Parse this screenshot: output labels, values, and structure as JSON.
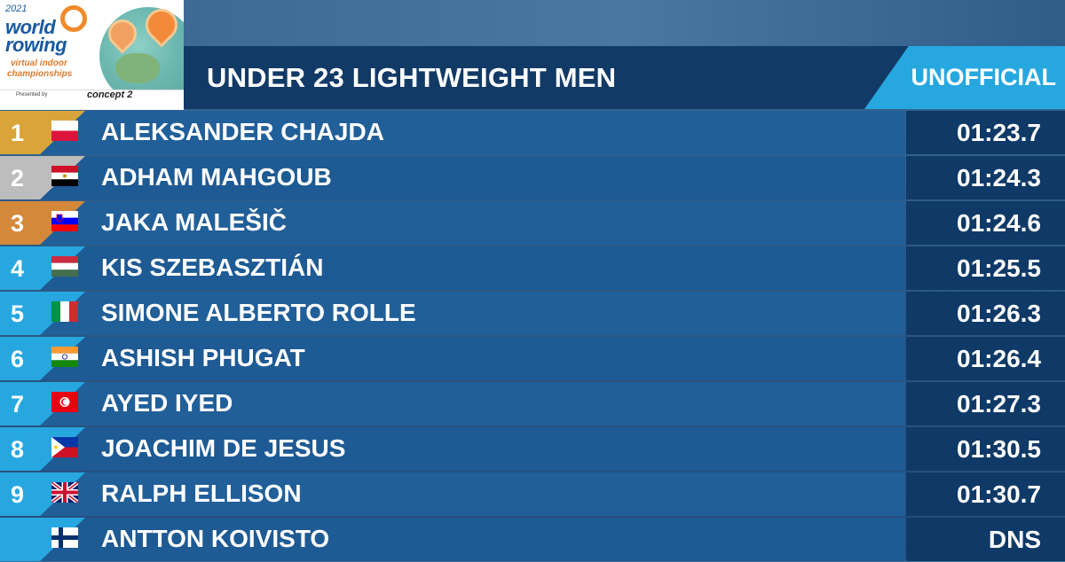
{
  "logo": {
    "year": "2021",
    "word1": "world",
    "word2": "rowing",
    "sub1": "virtual indoor",
    "sub2": "championships",
    "presented_by": "Presented by",
    "sponsor": "concept 2"
  },
  "header": {
    "title": "UNDER 23 LIGHTWEIGHT MEN",
    "status": "UNOFFICIAL"
  },
  "colors": {
    "gold": "#d9a53a",
    "silver": "#bdbdbd",
    "bronze": "#d4883a",
    "accent": "#27a7e0"
  },
  "results": [
    {
      "rank": "1",
      "medal": "gold",
      "flag": "flag-poland-icon",
      "name": "ALEKSANDER CHAJDA",
      "time": "01:23.7"
    },
    {
      "rank": "2",
      "medal": "silver",
      "flag": "flag-egypt-icon",
      "name": "ADHAM MAHGOUB",
      "time": "01:24.3"
    },
    {
      "rank": "3",
      "medal": "bronze",
      "flag": "flag-slovenia-icon",
      "name": "JAKA MALEŠIČ",
      "time": "01:24.6"
    },
    {
      "rank": "4",
      "medal": "blue",
      "flag": "flag-hungary-icon",
      "name": "KIS SZEBASZTIÁN",
      "time": "01:25.5"
    },
    {
      "rank": "5",
      "medal": "blue",
      "flag": "flag-italy-icon",
      "name": "SIMONE ALBERTO ROLLE",
      "time": "01:26.3"
    },
    {
      "rank": "6",
      "medal": "blue",
      "flag": "flag-india-icon",
      "name": "ASHISH PHUGAT",
      "time": "01:26.4"
    },
    {
      "rank": "7",
      "medal": "blue",
      "flag": "flag-tunisia-icon",
      "name": "AYED IYED",
      "time": "01:27.3"
    },
    {
      "rank": "8",
      "medal": "blue",
      "flag": "flag-philippines-icon",
      "name": "JOACHIM DE JESUS",
      "time": "01:30.5"
    },
    {
      "rank": "9",
      "medal": "blue",
      "flag": "flag-uk-icon",
      "name": "RALPH ELLISON",
      "time": "01:30.7"
    },
    {
      "rank": "",
      "medal": "blue",
      "flag": "flag-finland-icon",
      "name": "ANTTON KOIVISTO",
      "time": "DNS"
    }
  ]
}
